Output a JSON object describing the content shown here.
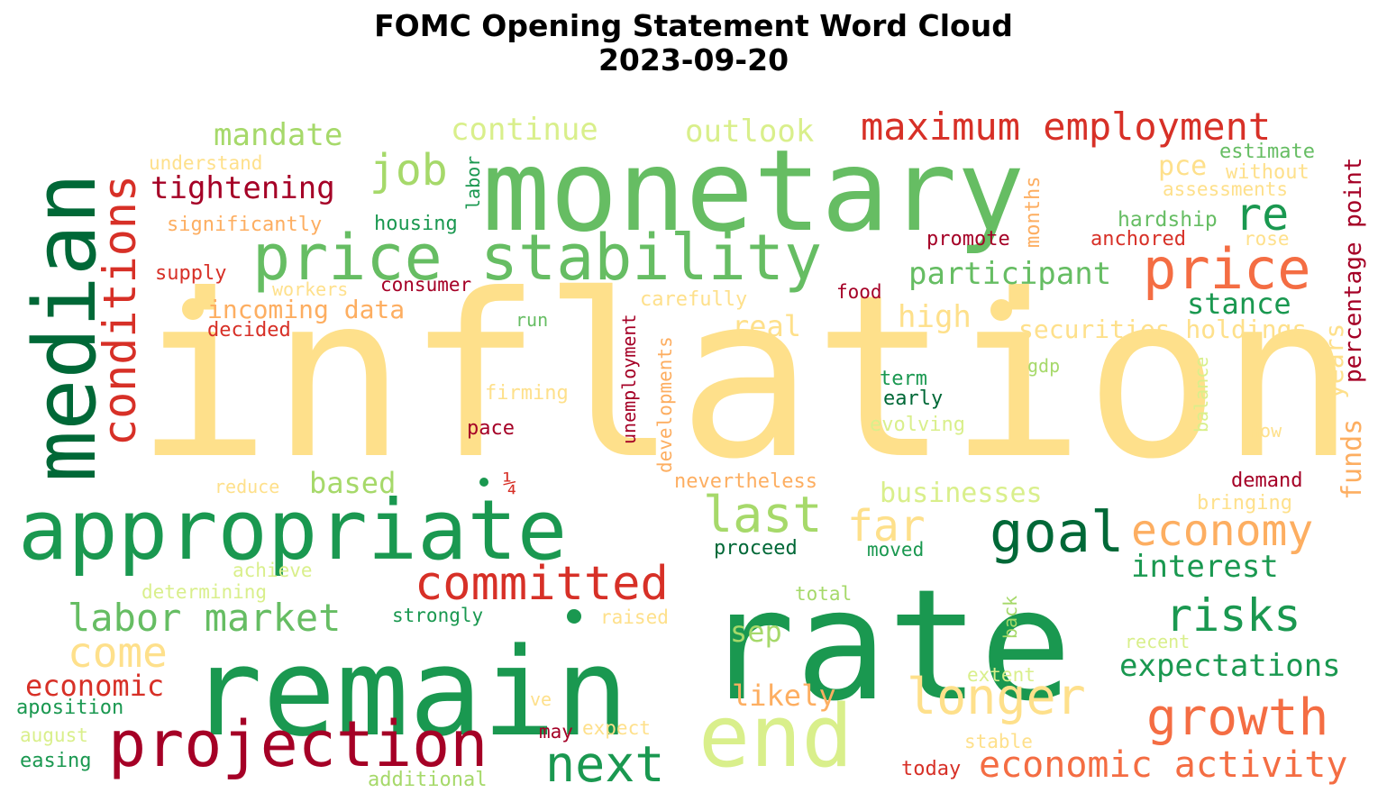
{
  "title_line1": "FOMC Opening Statement Word Cloud",
  "title_line2": "2023-09-20",
  "palette": {
    "darkgreen": "#006837",
    "green": "#1a9850",
    "midgreen": "#66bd63",
    "lightgreen": "#a6d96a",
    "palegreen": "#d9ef8b",
    "paleyellow": "#fee08b",
    "orange": "#fdae61",
    "darkorange": "#f46d43",
    "red": "#d73027",
    "darkred": "#a50026"
  },
  "words": [
    {
      "text": "inflation",
      "color": "#fee08b"
    },
    {
      "text": "monetary",
      "color": "#66bd63"
    },
    {
      "text": "rate",
      "color": "#1a9850"
    },
    {
      "text": "remain",
      "color": "#1a9850"
    },
    {
      "text": "appropriate",
      "color": "#1a9850"
    },
    {
      "text": "median",
      "color": "#006837"
    },
    {
      "text": "price stability",
      "color": "#66bd63"
    },
    {
      "text": "end",
      "color": "#d9ef8b"
    },
    {
      "text": "projection",
      "color": "#a50026"
    },
    {
      "text": "price",
      "color": "#f46d43"
    },
    {
      "text": "conditions",
      "color": "#d73027"
    },
    {
      "text": "maximum employment",
      "color": "#d73027"
    },
    {
      "text": "growth",
      "color": "#f46d43"
    },
    {
      "text": "committed",
      "color": "#d73027"
    },
    {
      "text": "goal",
      "color": "#006837"
    },
    {
      "text": "economy",
      "color": "#fdae61"
    },
    {
      "text": "longer",
      "color": "#fee08b"
    },
    {
      "text": "next",
      "color": "#1a9850"
    },
    {
      "text": "last",
      "color": "#a6d96a"
    },
    {
      "text": "job",
      "color": "#a6d96a"
    },
    {
      "text": "come",
      "color": "#fee08b"
    },
    {
      "text": "far",
      "color": "#fee08b"
    },
    {
      "text": "risks",
      "color": "#1a9850"
    },
    {
      "text": "labor market",
      "color": "#66bd63"
    },
    {
      "text": "economic activity",
      "color": "#f46d43"
    },
    {
      "text": "re",
      "color": "#1a9850"
    },
    {
      "text": "expectations",
      "color": "#1a9850"
    },
    {
      "text": "interest",
      "color": "#1a9850"
    },
    {
      "text": "participant",
      "color": "#66bd63"
    },
    {
      "text": "tightening",
      "color": "#a50026"
    },
    {
      "text": "mandate",
      "color": "#a6d96a"
    },
    {
      "text": "continue",
      "color": "#d9ef8b"
    },
    {
      "text": "outlook",
      "color": "#d9ef8b"
    },
    {
      "text": "stance",
      "color": "#1a9850"
    },
    {
      "text": "high",
      "color": "#fee08b"
    },
    {
      "text": "real",
      "color": "#fee08b"
    },
    {
      "text": "economic",
      "color": "#d73027"
    },
    {
      "text": "likely",
      "color": "#fdae61"
    },
    {
      "text": "based",
      "color": "#a6d96a"
    },
    {
      "text": "businesses",
      "color": "#d9ef8b"
    },
    {
      "text": "securities holdings",
      "color": "#fee08b"
    },
    {
      "text": "incoming data",
      "color": "#fdae61"
    },
    {
      "text": "percentage point",
      "color": "#a50026"
    },
    {
      "text": "funds",
      "color": "#fdae61"
    },
    {
      "text": "years",
      "color": "#fee08b"
    },
    {
      "text": "pce",
      "color": "#fee08b"
    },
    {
      "text": "sep",
      "color": "#a6d96a"
    },
    {
      "text": "estimate",
      "color": "#66bd63"
    },
    {
      "text": "without",
      "color": "#fee08b"
    },
    {
      "text": "assessments",
      "color": "#fee08b"
    },
    {
      "text": "hardship",
      "color": "#66bd63"
    },
    {
      "text": "anchored",
      "color": "#d73027"
    },
    {
      "text": "rose",
      "color": "#fee08b"
    },
    {
      "text": "promote",
      "color": "#a50026"
    },
    {
      "text": "months",
      "color": "#fdae61"
    },
    {
      "text": "labor",
      "color": "#1a9850"
    },
    {
      "text": "housing",
      "color": "#1a9850"
    },
    {
      "text": "understand",
      "color": "#fee08b"
    },
    {
      "text": "significantly",
      "color": "#fdae61"
    },
    {
      "text": "supply",
      "color": "#d73027"
    },
    {
      "text": "workers",
      "color": "#fee08b"
    },
    {
      "text": "consumer",
      "color": "#a50026"
    },
    {
      "text": "carefully",
      "color": "#fee08b"
    },
    {
      "text": "food",
      "color": "#a50026"
    },
    {
      "text": "decided",
      "color": "#d73027"
    },
    {
      "text": "run",
      "color": "#66bd63"
    },
    {
      "text": "unemployment",
      "color": "#a50026"
    },
    {
      "text": "developments",
      "color": "#fdae61"
    },
    {
      "text": "firming",
      "color": "#fee08b"
    },
    {
      "text": "pace",
      "color": "#a50026"
    },
    {
      "text": "¼",
      "color": "#d73027"
    },
    {
      "text": "reduce",
      "color": "#fee08b"
    },
    {
      "text": "term",
      "color": "#1a9850"
    },
    {
      "text": "early",
      "color": "#006837"
    },
    {
      "text": "gdp",
      "color": "#a6d96a"
    },
    {
      "text": "evolving",
      "color": "#d9ef8b"
    },
    {
      "text": "nevertheless",
      "color": "#fdae61"
    },
    {
      "text": "balance",
      "color": "#d9ef8b"
    },
    {
      "text": "now",
      "color": "#fee08b"
    },
    {
      "text": "demand",
      "color": "#a50026"
    },
    {
      "text": "bringing",
      "color": "#fee08b"
    },
    {
      "text": "proceed",
      "color": "#006837"
    },
    {
      "text": "moved",
      "color": "#1a9850"
    },
    {
      "text": "achieve",
      "color": "#d9ef8b"
    },
    {
      "text": "determining",
      "color": "#d9ef8b"
    },
    {
      "text": "strongly",
      "color": "#1a9850"
    },
    {
      "text": "raised",
      "color": "#fee08b"
    },
    {
      "text": "total",
      "color": "#a6d96a"
    },
    {
      "text": "back",
      "color": "#a6d96a"
    },
    {
      "text": "recent",
      "color": "#d9ef8b"
    },
    {
      "text": "extent",
      "color": "#d9ef8b"
    },
    {
      "text": "aposition",
      "color": "#1a9850"
    },
    {
      "text": "august",
      "color": "#d9ef8b"
    },
    {
      "text": "ve",
      "color": "#fee08b"
    },
    {
      "text": "may",
      "color": "#a50026"
    },
    {
      "text": "expect",
      "color": "#fee08b"
    },
    {
      "text": "stable",
      "color": "#fee08b"
    },
    {
      "text": "easing",
      "color": "#1a9850"
    },
    {
      "text": "additional",
      "color": "#a6d96a"
    },
    {
      "text": "today",
      "color": "#d73027"
    }
  ],
  "dots": [
    {
      "color": "#fee08b"
    },
    {
      "color": "#fee08b"
    },
    {
      "color": "#1a9850"
    },
    {
      "color": "#1a9850"
    }
  ]
}
